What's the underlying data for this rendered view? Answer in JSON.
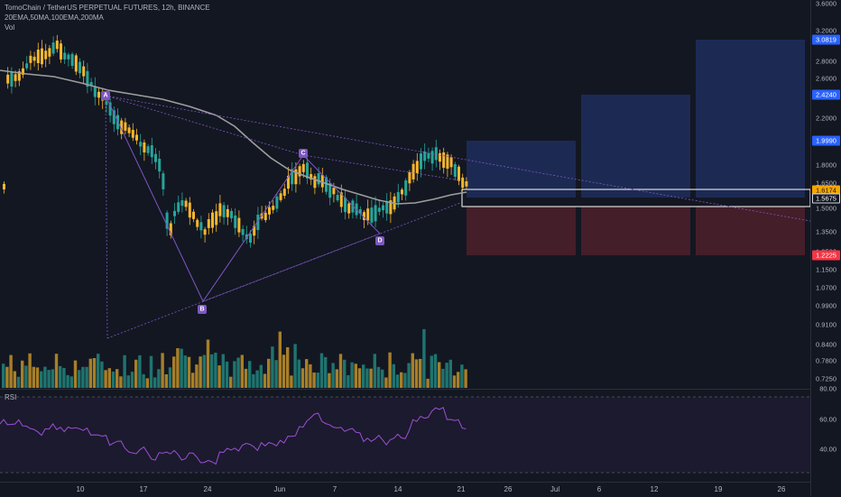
{
  "legend": {
    "title": "TomoChain / TetherUS PERPETUAL FUTURES, 12h, BINANCE",
    "indicators": "20EMA,50MA,100EMA,200MA",
    "volume": "Vol"
  },
  "rsi": {
    "label": "RSI",
    "levels": [
      "80.00",
      "60.00",
      "40.00"
    ]
  },
  "price_axis": {
    "ticks": [
      "3.6000",
      "3.2000",
      "2.8000",
      "2.6000",
      "2.2000",
      "1.8000",
      "1.6500",
      "1.5000",
      "1.3500",
      "1.2500",
      "1.1500",
      "1.0700",
      "0.9900",
      "0.9100",
      "0.8400",
      "0.7800",
      "0.7250"
    ],
    "badges": [
      {
        "label": "3.0819",
        "color": "#2962ff"
      },
      {
        "label": "2.4240",
        "color": "#2962ff"
      },
      {
        "label": "1.9990",
        "color": "#2962ff"
      },
      {
        "label": "1.6174",
        "color": "#f7a600"
      },
      {
        "label": "1.5675",
        "color": "#131722"
      },
      {
        "label": "1.2225",
        "color": "#f23645"
      }
    ]
  },
  "time_axis": {
    "labels": [
      "10",
      "17",
      "24",
      "Jun",
      "7",
      "14",
      "21",
      "26",
      "Jul",
      "6",
      "12",
      "19",
      "26"
    ]
  },
  "pattern": {
    "markers": [
      "A",
      "B",
      "C",
      "D"
    ]
  },
  "colors": {
    "up": "#26a69a",
    "down": "#f7b72d",
    "ma": "#9e9e9e",
    "pattern": "#7e57c2",
    "target": "#1e2e5c",
    "stop": "#4a1f2a",
    "background": "#131722"
  },
  "chart_data": {
    "type": "candlestick",
    "symbol": "TomoChain / TetherUS PERPETUAL FUTURES",
    "interval": "12h",
    "exchange": "BINANCE",
    "price_levels": {
      "last": 1.6174,
      "entry": 1.5675,
      "stop": 1.2225,
      "targets": [
        1.999,
        2.424,
        3.0819
      ]
    },
    "harmonic_points": [
      {
        "label": "A",
        "price": 2.4
      },
      {
        "label": "B",
        "price": 1.0
      },
      {
        "label": "C",
        "price": 1.82
      },
      {
        "label": "D",
        "price": 1.33
      }
    ],
    "rsi_levels": [
      80,
      60,
      40
    ]
  }
}
